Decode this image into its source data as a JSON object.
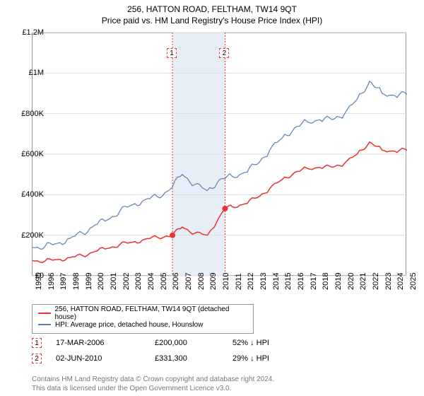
{
  "title_main": "256, HATTON ROAD, FELTHAM, TW14 9QT",
  "title_sub": "Price paid vs. HM Land Registry's House Price Index (HPI)",
  "chart": {
    "type": "line",
    "background_color": "#ffffff",
    "grid_color": "#dddddd",
    "axis_color": "#999999",
    "x": {
      "min": 1995,
      "max": 2025,
      "ticks": [
        1995,
        1996,
        1997,
        1998,
        1999,
        2000,
        2001,
        2002,
        2003,
        2004,
        2005,
        2006,
        2007,
        2008,
        2009,
        2010,
        2011,
        2012,
        2013,
        2014,
        2015,
        2016,
        2017,
        2018,
        2019,
        2020,
        2021,
        2022,
        2023,
        2024,
        2025
      ]
    },
    "y": {
      "min": 0,
      "max": 1200000,
      "ticks": [
        0,
        200000,
        400000,
        600000,
        800000,
        1000000,
        1200000
      ],
      "labels": [
        "£0",
        "£200K",
        "£400K",
        "£600K",
        "£800K",
        "£1M",
        "£1.2M"
      ]
    },
    "shaded_band": {
      "from": 2006.21,
      "to": 2010.42,
      "color": "#e8eef8"
    },
    "series": [
      {
        "name": "HPI: Average price, detached house, Hounslow",
        "color": "#5b7fb5",
        "line_width": 1.2,
        "points": [
          [
            1995,
            140000
          ],
          [
            1996,
            145000
          ],
          [
            1997,
            160000
          ],
          [
            1998,
            185000
          ],
          [
            1999,
            210000
          ],
          [
            2000,
            250000
          ],
          [
            2001,
            275000
          ],
          [
            2002,
            320000
          ],
          [
            2003,
            350000
          ],
          [
            2004,
            375000
          ],
          [
            2005,
            390000
          ],
          [
            2006,
            425000
          ],
          [
            2007,
            500000
          ],
          [
            2008,
            450000
          ],
          [
            2009,
            420000
          ],
          [
            2010,
            475000
          ],
          [
            2011,
            490000
          ],
          [
            2012,
            510000
          ],
          [
            2013,
            550000
          ],
          [
            2014,
            620000
          ],
          [
            2015,
            680000
          ],
          [
            2016,
            730000
          ],
          [
            2017,
            760000
          ],
          [
            2018,
            770000
          ],
          [
            2019,
            770000
          ],
          [
            2020,
            800000
          ],
          [
            2021,
            870000
          ],
          [
            2022,
            960000
          ],
          [
            2023,
            900000
          ],
          [
            2024,
            890000
          ],
          [
            2025,
            895000
          ]
        ]
      },
      {
        "name": "256, HATTON ROAD, FELTHAM, TW14 9QT (detached house)",
        "color": "#e8322f",
        "line_width": 1.5,
        "points": [
          [
            1995,
            75000
          ],
          [
            1996,
            73000
          ],
          [
            1997,
            80000
          ],
          [
            1998,
            90000
          ],
          [
            1999,
            100000
          ],
          [
            2000,
            120000
          ],
          [
            2001,
            135000
          ],
          [
            2002,
            155000
          ],
          [
            2003,
            165000
          ],
          [
            2004,
            180000
          ],
          [
            2005,
            190000
          ],
          [
            2006.21,
            200000
          ],
          [
            2007,
            240000
          ],
          [
            2008,
            210000
          ],
          [
            2009,
            200000
          ],
          [
            2010.42,
            331300
          ],
          [
            2011,
            340000
          ],
          [
            2012,
            355000
          ],
          [
            2013,
            385000
          ],
          [
            2014,
            430000
          ],
          [
            2015,
            475000
          ],
          [
            2016,
            510000
          ],
          [
            2017,
            530000
          ],
          [
            2018,
            535000
          ],
          [
            2019,
            535000
          ],
          [
            2020,
            555000
          ],
          [
            2021,
            600000
          ],
          [
            2022,
            660000
          ],
          [
            2023,
            620000
          ],
          [
            2024,
            615000
          ],
          [
            2025,
            620000
          ]
        ]
      }
    ],
    "price_points": [
      {
        "x": 2006.21,
        "y": 200000,
        "color": "#e8322f"
      },
      {
        "x": 2010.42,
        "y": 331300,
        "color": "#e8322f"
      }
    ],
    "markers": [
      {
        "label": "1",
        "x": 2006.21,
        "line_color": "#e8322f"
      },
      {
        "label": "2",
        "x": 2010.42,
        "line_color": "#e8322f"
      }
    ],
    "marker_box_style": {
      "border_color": "#e8322f",
      "border_style": "dashed",
      "text_color": "#000000",
      "size": 14,
      "fontsize": 10
    }
  },
  "legend": {
    "items": [
      {
        "color": "#e8322f",
        "label": "256, HATTON ROAD, FELTHAM, TW14 9QT (detached house)"
      },
      {
        "color": "#5b7fb5",
        "label": "HPI: Average price, detached house, Hounslow"
      }
    ]
  },
  "transactions": [
    {
      "marker": "1",
      "date": "17-MAR-2006",
      "price": "£200,000",
      "pct": "52% ↓ HPI"
    },
    {
      "marker": "2",
      "date": "02-JUN-2010",
      "price": "£331,300",
      "pct": "29% ↓ HPI"
    }
  ],
  "attribution_line1": "Contains HM Land Registry data © Crown copyright and database right 2024.",
  "attribution_line2": "This data is licensed under the Open Government Licence v3.0."
}
